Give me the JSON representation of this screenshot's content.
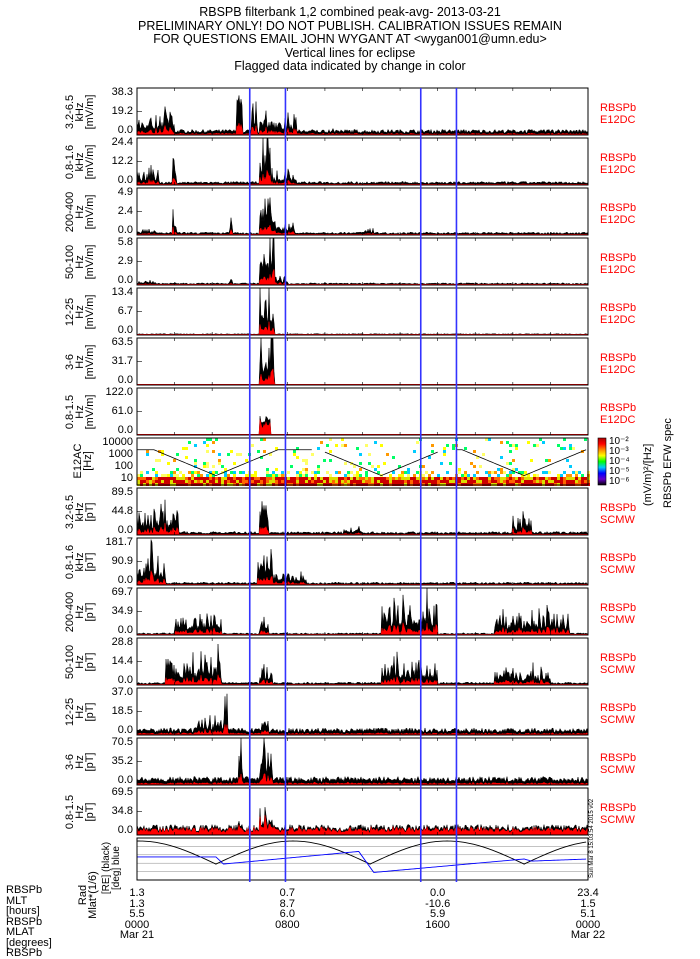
{
  "header": {
    "lines": [
      "RBSPB filterbank 1,2 combined peak-avg- 2013-03-21",
      "PRELIMINARY ONLY! DO NOT PUBLISH. CALIBRATION ISSUES REMAIN",
      "FOR QUESTIONS EMAIL JOHN WYGANT AT <wygan001@umn.edu>",
      "Vertical lines for eclipse",
      "Flagged data indicated by change in color"
    ]
  },
  "colors": {
    "peak": "#000000",
    "avg": "#ff0000",
    "eclipse": "#3333ff",
    "instrument": "#ff0000"
  },
  "chart_data": {
    "type": "line",
    "x_unit": "hours since 2013-03-21 00:00 UT",
    "xlim": [
      0,
      24
    ],
    "eclipse_lines_hours": [
      6.0,
      7.9,
      15.1,
      17.0
    ],
    "panels": [
      {
        "range": "3.2-6.5",
        "unit": "kHz",
        "y_unit": "[mV/m]",
        "ylim": [
          0,
          38.3
        ],
        "ticks": [
          "38.3",
          "19.2",
          "0.0"
        ],
        "inst": [
          "RBSPb",
          "E12DC"
        ],
        "base": 0.08,
        "bursts": [
          [
            0,
            2,
            0.5
          ],
          [
            5.3,
            5.6,
            1.0
          ],
          [
            6.1,
            6.4,
            0.9
          ],
          [
            6.5,
            8.5,
            0.4
          ],
          [
            10,
            11,
            0.12
          ],
          [
            21,
            24,
            0.08
          ]
        ]
      },
      {
        "range": "0.8-1.6",
        "unit": "kHz",
        "y_unit": "[mV/m]",
        "ylim": [
          0,
          24.4
        ],
        "ticks": [
          "24.4",
          "12.2",
          "0.0"
        ],
        "inst": [
          "RBSPb",
          "E12DC"
        ],
        "base": 0.05,
        "bursts": [
          [
            0,
            1.2,
            0.35
          ],
          [
            1.9,
            2.1,
            0.75
          ],
          [
            6.5,
            7.1,
            1.0
          ],
          [
            7.1,
            8.5,
            0.3
          ]
        ]
      },
      {
        "range": "200-400",
        "unit": "Hz",
        "y_unit": "[mV/m]",
        "ylim": [
          0,
          4.9
        ],
        "ticks": [
          "4.9",
          "2.4",
          "0.0"
        ],
        "inst": [
          "RBSPb",
          "E12DC"
        ],
        "base": 0.04,
        "bursts": [
          [
            0,
            1,
            0.15
          ],
          [
            1.9,
            2.1,
            0.5
          ],
          [
            4.9,
            5.1,
            0.5
          ],
          [
            6.5,
            7.2,
            1.0
          ],
          [
            7.2,
            8.4,
            0.35
          ],
          [
            11.8,
            12.6,
            0.2
          ]
        ]
      },
      {
        "range": "50-100",
        "unit": "Hz",
        "y_unit": "[mV/m]",
        "ylim": [
          0,
          5.8
        ],
        "ticks": [
          "5.8",
          "2.9",
          "0.0"
        ],
        "inst": [
          "RBSPb",
          "E12DC"
        ],
        "base": 0.03,
        "bursts": [
          [
            0,
            1,
            0.1
          ],
          [
            4.9,
            5.1,
            0.3
          ],
          [
            6.5,
            7.3,
            1.0
          ],
          [
            7.3,
            8.0,
            0.2
          ]
        ]
      },
      {
        "range": "12-25",
        "unit": "Hz",
        "y_unit": "[mV/m]",
        "ylim": [
          0,
          13.4
        ],
        "ticks": [
          "13.4",
          "6.7",
          "0.0"
        ],
        "inst": [
          "RBSPb",
          "E12DC"
        ],
        "base": 0.02,
        "bursts": [
          [
            6.5,
            7.3,
            1.0
          ]
        ]
      },
      {
        "range": "3-6",
        "unit": "Hz",
        "y_unit": "[mV/m]",
        "ylim": [
          0,
          63.5
        ],
        "ticks": [
          "63.5",
          "31.7",
          "0.0"
        ],
        "inst": [
          "RBSPb",
          "E12DC"
        ],
        "base": 0.01,
        "bursts": [
          [
            6.5,
            7.3,
            1.0
          ]
        ]
      },
      {
        "range": "0.8-1.5",
        "unit": "Hz",
        "y_unit": "[mV/m]",
        "ylim": [
          0,
          122.0
        ],
        "ticks": [
          "122.0",
          "61.0",
          "0.0"
        ],
        "inst": [
          "RBSPb",
          "E12DC"
        ],
        "base": 0.01,
        "bursts": [
          [
            6.5,
            7.1,
            1.0
          ]
        ],
        "red_dominant": true
      },
      {
        "type": "spectrogram",
        "range": "E12AC",
        "unit": "[Hz]",
        "ticks": [
          "10000",
          "1000",
          "100",
          "10"
        ],
        "colorbar": {
          "ticks": [
            "10⁻²",
            "10⁻³",
            "10⁻⁴",
            "10⁻⁵",
            "10⁻⁶"
          ],
          "label": "(mV/m)²/[Hz]",
          "title": "RBSPb EFW spec"
        }
      },
      {
        "range": "3.2-6.5",
        "unit": "kHz",
        "y_unit": "[pT]",
        "ylim": [
          0,
          89.5
        ],
        "ticks": [
          "89.5",
          "44.8",
          "0.0"
        ],
        "inst": [
          "RBSPb",
          "SCMW"
        ],
        "base": 0.05,
        "bursts": [
          [
            0,
            2.2,
            0.55
          ],
          [
            1.2,
            1.4,
            0.9
          ],
          [
            6.5,
            7.0,
            1.0
          ],
          [
            11,
            12,
            0.2
          ],
          [
            20,
            21,
            0.4
          ]
        ]
      },
      {
        "range": "0.8-1.6",
        "unit": "kHz",
        "y_unit": "[pT]",
        "ylim": [
          0,
          181.7
        ],
        "ticks": [
          "181.7",
          "90.9",
          "0.0"
        ],
        "inst": [
          "RBSPb",
          "SCMW"
        ],
        "base": 0.04,
        "bursts": [
          [
            0,
            1.5,
            0.6
          ],
          [
            0.6,
            0.8,
            1.0
          ],
          [
            6.4,
            7.2,
            1.0
          ],
          [
            7.2,
            9.0,
            0.3
          ]
        ]
      },
      {
        "range": "200-400",
        "unit": "Hz",
        "y_unit": "[pT]",
        "ylim": [
          0,
          69.7
        ],
        "ticks": [
          "69.7",
          "34.9",
          "0.0"
        ],
        "inst": [
          "RBSPb",
          "SCMW"
        ],
        "base": 0.03,
        "bursts": [
          [
            2,
            4.5,
            0.45
          ],
          [
            6.5,
            7.0,
            0.35
          ],
          [
            13,
            16,
            0.75
          ],
          [
            19,
            23,
            0.5
          ]
        ]
      },
      {
        "range": "50-100",
        "unit": "Hz",
        "y_unit": "[pT]",
        "ylim": [
          0,
          28.8
        ],
        "ticks": [
          "28.8",
          "14.4",
          "0.0"
        ],
        "inst": [
          "RBSPb",
          "SCMW"
        ],
        "base": 0.04,
        "bursts": [
          [
            1.5,
            4.5,
            0.6
          ],
          [
            6.5,
            7.2,
            0.45
          ],
          [
            13,
            16,
            0.55
          ],
          [
            19,
            22,
            0.35
          ]
        ]
      },
      {
        "range": "12-25",
        "unit": "Hz",
        "y_unit": "[pT]",
        "ylim": [
          0,
          37.0
        ],
        "ticks": [
          "37.0",
          "18.5",
          "0.0"
        ],
        "inst": [
          "RBSPb",
          "SCMW"
        ],
        "base": 0.1,
        "bursts": [
          [
            3,
            4.5,
            0.4
          ],
          [
            4.6,
            4.8,
            1.0
          ],
          [
            6.6,
            7.0,
            0.6
          ]
        ]
      },
      {
        "range": "3-6",
        "unit": "Hz",
        "y_unit": "[pT]",
        "ylim": [
          0,
          70.5
        ],
        "ticks": [
          "70.5",
          "35.2",
          "0.0"
        ],
        "inst": [
          "RBSPb",
          "SCMW"
        ],
        "base": 0.12,
        "bursts": [
          [
            5.4,
            5.6,
            1.0
          ],
          [
            6.5,
            7.2,
            1.0
          ]
        ]
      },
      {
        "range": "0.8-1.5",
        "unit": "Hz",
        "y_unit": "[pT]",
        "ylim": [
          0,
          69.5
        ],
        "ticks": [
          "69.5",
          "34.8",
          "0.0"
        ],
        "inst": [
          "RBSPb",
          "SCMW"
        ],
        "base": 0.15,
        "bursts": [
          [
            5.4,
            5.6,
            0.7
          ],
          [
            6.5,
            7.2,
            0.6
          ]
        ],
        "red_dominant": true
      },
      {
        "type": "ephemeris",
        "labels": [
          "Rad",
          "Mlat*(1/6)",
          "[RE] (black)",
          "[deg] blue"
        ],
        "series": [
          {
            "name": "Rad",
            "color": "#000000"
          },
          {
            "name": "Mlat/6",
            "color": "#0000ff"
          }
        ]
      }
    ],
    "x_ticks": {
      "row_labels": [
        "RBSPb",
        "MLT",
        "[hours]",
        "RBSPb",
        "MLAT",
        "[degrees]",
        "RBSPb"
      ],
      "columns": [
        {
          "hour": 0,
          "values": [
            "1.3",
            "1.3",
            "5.5",
            "0000",
            "Mar 21"
          ]
        },
        {
          "hour": 8,
          "values": [
            "0.7",
            "8.7",
            "6.0",
            "0800",
            ""
          ]
        },
        {
          "hour": 16,
          "values": [
            "0.0",
            "-10.6",
            "5.9",
            "1600",
            ""
          ]
        },
        {
          "hour": 24,
          "values": [
            "23.4",
            "1.5",
            "5.1",
            "0000",
            "Mar 22"
          ]
        }
      ]
    },
    "stamp": "Sun Mar 8 15:03:54 2015 v02"
  }
}
